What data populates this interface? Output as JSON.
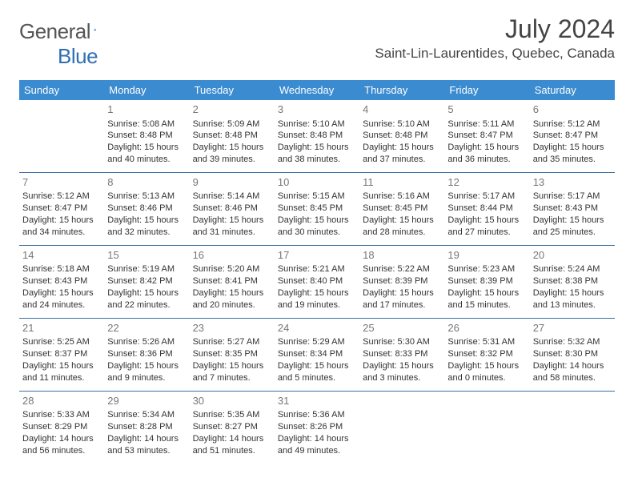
{
  "brand": {
    "word1": "General",
    "word2": "Blue"
  },
  "title": "July 2024",
  "location": "Saint-Lin-Laurentides, Quebec, Canada",
  "colors": {
    "header_bg": "#3b8bd0",
    "header_text": "#ffffff",
    "row_border": "#3b6ea0",
    "daynum": "#777777",
    "body_text": "#333333",
    "logo_accent": "#2f6fb3"
  },
  "day_headers": [
    "Sunday",
    "Monday",
    "Tuesday",
    "Wednesday",
    "Thursday",
    "Friday",
    "Saturday"
  ],
  "layout": {
    "first_weekday_index": 1,
    "days_in_month": 31
  },
  "days": {
    "1": {
      "sunrise": "Sunrise: 5:08 AM",
      "sunset": "Sunset: 8:48 PM",
      "daylight1": "Daylight: 15 hours",
      "daylight2": "and 40 minutes."
    },
    "2": {
      "sunrise": "Sunrise: 5:09 AM",
      "sunset": "Sunset: 8:48 PM",
      "daylight1": "Daylight: 15 hours",
      "daylight2": "and 39 minutes."
    },
    "3": {
      "sunrise": "Sunrise: 5:10 AM",
      "sunset": "Sunset: 8:48 PM",
      "daylight1": "Daylight: 15 hours",
      "daylight2": "and 38 minutes."
    },
    "4": {
      "sunrise": "Sunrise: 5:10 AM",
      "sunset": "Sunset: 8:48 PM",
      "daylight1": "Daylight: 15 hours",
      "daylight2": "and 37 minutes."
    },
    "5": {
      "sunrise": "Sunrise: 5:11 AM",
      "sunset": "Sunset: 8:47 PM",
      "daylight1": "Daylight: 15 hours",
      "daylight2": "and 36 minutes."
    },
    "6": {
      "sunrise": "Sunrise: 5:12 AM",
      "sunset": "Sunset: 8:47 PM",
      "daylight1": "Daylight: 15 hours",
      "daylight2": "and 35 minutes."
    },
    "7": {
      "sunrise": "Sunrise: 5:12 AM",
      "sunset": "Sunset: 8:47 PM",
      "daylight1": "Daylight: 15 hours",
      "daylight2": "and 34 minutes."
    },
    "8": {
      "sunrise": "Sunrise: 5:13 AM",
      "sunset": "Sunset: 8:46 PM",
      "daylight1": "Daylight: 15 hours",
      "daylight2": "and 32 minutes."
    },
    "9": {
      "sunrise": "Sunrise: 5:14 AM",
      "sunset": "Sunset: 8:46 PM",
      "daylight1": "Daylight: 15 hours",
      "daylight2": "and 31 minutes."
    },
    "10": {
      "sunrise": "Sunrise: 5:15 AM",
      "sunset": "Sunset: 8:45 PM",
      "daylight1": "Daylight: 15 hours",
      "daylight2": "and 30 minutes."
    },
    "11": {
      "sunrise": "Sunrise: 5:16 AM",
      "sunset": "Sunset: 8:45 PM",
      "daylight1": "Daylight: 15 hours",
      "daylight2": "and 28 minutes."
    },
    "12": {
      "sunrise": "Sunrise: 5:17 AM",
      "sunset": "Sunset: 8:44 PM",
      "daylight1": "Daylight: 15 hours",
      "daylight2": "and 27 minutes."
    },
    "13": {
      "sunrise": "Sunrise: 5:17 AM",
      "sunset": "Sunset: 8:43 PM",
      "daylight1": "Daylight: 15 hours",
      "daylight2": "and 25 minutes."
    },
    "14": {
      "sunrise": "Sunrise: 5:18 AM",
      "sunset": "Sunset: 8:43 PM",
      "daylight1": "Daylight: 15 hours",
      "daylight2": "and 24 minutes."
    },
    "15": {
      "sunrise": "Sunrise: 5:19 AM",
      "sunset": "Sunset: 8:42 PM",
      "daylight1": "Daylight: 15 hours",
      "daylight2": "and 22 minutes."
    },
    "16": {
      "sunrise": "Sunrise: 5:20 AM",
      "sunset": "Sunset: 8:41 PM",
      "daylight1": "Daylight: 15 hours",
      "daylight2": "and 20 minutes."
    },
    "17": {
      "sunrise": "Sunrise: 5:21 AM",
      "sunset": "Sunset: 8:40 PM",
      "daylight1": "Daylight: 15 hours",
      "daylight2": "and 19 minutes."
    },
    "18": {
      "sunrise": "Sunrise: 5:22 AM",
      "sunset": "Sunset: 8:39 PM",
      "daylight1": "Daylight: 15 hours",
      "daylight2": "and 17 minutes."
    },
    "19": {
      "sunrise": "Sunrise: 5:23 AM",
      "sunset": "Sunset: 8:39 PM",
      "daylight1": "Daylight: 15 hours",
      "daylight2": "and 15 minutes."
    },
    "20": {
      "sunrise": "Sunrise: 5:24 AM",
      "sunset": "Sunset: 8:38 PM",
      "daylight1": "Daylight: 15 hours",
      "daylight2": "and 13 minutes."
    },
    "21": {
      "sunrise": "Sunrise: 5:25 AM",
      "sunset": "Sunset: 8:37 PM",
      "daylight1": "Daylight: 15 hours",
      "daylight2": "and 11 minutes."
    },
    "22": {
      "sunrise": "Sunrise: 5:26 AM",
      "sunset": "Sunset: 8:36 PM",
      "daylight1": "Daylight: 15 hours",
      "daylight2": "and 9 minutes."
    },
    "23": {
      "sunrise": "Sunrise: 5:27 AM",
      "sunset": "Sunset: 8:35 PM",
      "daylight1": "Daylight: 15 hours",
      "daylight2": "and 7 minutes."
    },
    "24": {
      "sunrise": "Sunrise: 5:29 AM",
      "sunset": "Sunset: 8:34 PM",
      "daylight1": "Daylight: 15 hours",
      "daylight2": "and 5 minutes."
    },
    "25": {
      "sunrise": "Sunrise: 5:30 AM",
      "sunset": "Sunset: 8:33 PM",
      "daylight1": "Daylight: 15 hours",
      "daylight2": "and 3 minutes."
    },
    "26": {
      "sunrise": "Sunrise: 5:31 AM",
      "sunset": "Sunset: 8:32 PM",
      "daylight1": "Daylight: 15 hours",
      "daylight2": "and 0 minutes."
    },
    "27": {
      "sunrise": "Sunrise: 5:32 AM",
      "sunset": "Sunset: 8:30 PM",
      "daylight1": "Daylight: 14 hours",
      "daylight2": "and 58 minutes."
    },
    "28": {
      "sunrise": "Sunrise: 5:33 AM",
      "sunset": "Sunset: 8:29 PM",
      "daylight1": "Daylight: 14 hours",
      "daylight2": "and 56 minutes."
    },
    "29": {
      "sunrise": "Sunrise: 5:34 AM",
      "sunset": "Sunset: 8:28 PM",
      "daylight1": "Daylight: 14 hours",
      "daylight2": "and 53 minutes."
    },
    "30": {
      "sunrise": "Sunrise: 5:35 AM",
      "sunset": "Sunset: 8:27 PM",
      "daylight1": "Daylight: 14 hours",
      "daylight2": "and 51 minutes."
    },
    "31": {
      "sunrise": "Sunrise: 5:36 AM",
      "sunset": "Sunset: 8:26 PM",
      "daylight1": "Daylight: 14 hours",
      "daylight2": "and 49 minutes."
    }
  }
}
